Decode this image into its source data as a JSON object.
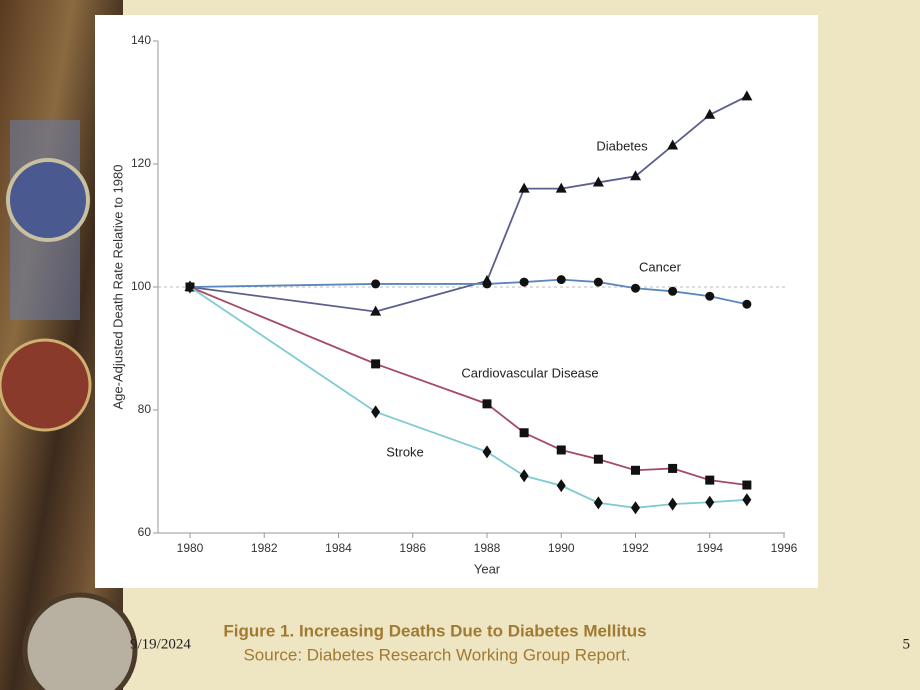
{
  "chart_data": {
    "type": "line",
    "x": [
      1980,
      1985,
      1988,
      1989,
      1990,
      1991,
      1992,
      1993,
      1994,
      1995
    ],
    "series": [
      {
        "name": "Diabetes",
        "color": "#5c5f8e",
        "marker": "triangle",
        "values": [
          100,
          96,
          101,
          116,
          116,
          117,
          118,
          123,
          128,
          131
        ]
      },
      {
        "name": "Cancer",
        "color": "#5a86bc",
        "marker": "circle",
        "values": [
          100,
          100.5,
          100.5,
          100.8,
          101.2,
          100.8,
          99.8,
          99.3,
          98.5,
          97.2
        ]
      },
      {
        "name": "Cardiovascular Disease",
        "color": "#a44c62",
        "marker": "square",
        "values": [
          100,
          87.5,
          81,
          76.3,
          73.5,
          72,
          70.2,
          70.5,
          68.6,
          67.8
        ]
      },
      {
        "name": "Stroke",
        "color": "#7fcad4",
        "marker": "diamond",
        "values": [
          100,
          79.7,
          73.2,
          69.3,
          67.7,
          64.9,
          64.1,
          64.7,
          65,
          65.4
        ]
      }
    ],
    "xlabel": "Year",
    "ylabel": "Age-Adjusted Death Rate Relative to 1980",
    "xlim": [
      1980,
      1996
    ],
    "xticks": [
      1980,
      1982,
      1984,
      1986,
      1988,
      1990,
      1992,
      1994,
      1996
    ],
    "ylim": [
      60,
      140
    ],
    "yticks": [
      60,
      80,
      100,
      120,
      140
    ],
    "reference_y": 100
  },
  "caption": "Figure 1. Increasing Deaths Due to Diabetes Mellitus",
  "source": "Source: Diabetes Research Working Group Report.",
  "date": "9/19/2024",
  "page_number": "5"
}
